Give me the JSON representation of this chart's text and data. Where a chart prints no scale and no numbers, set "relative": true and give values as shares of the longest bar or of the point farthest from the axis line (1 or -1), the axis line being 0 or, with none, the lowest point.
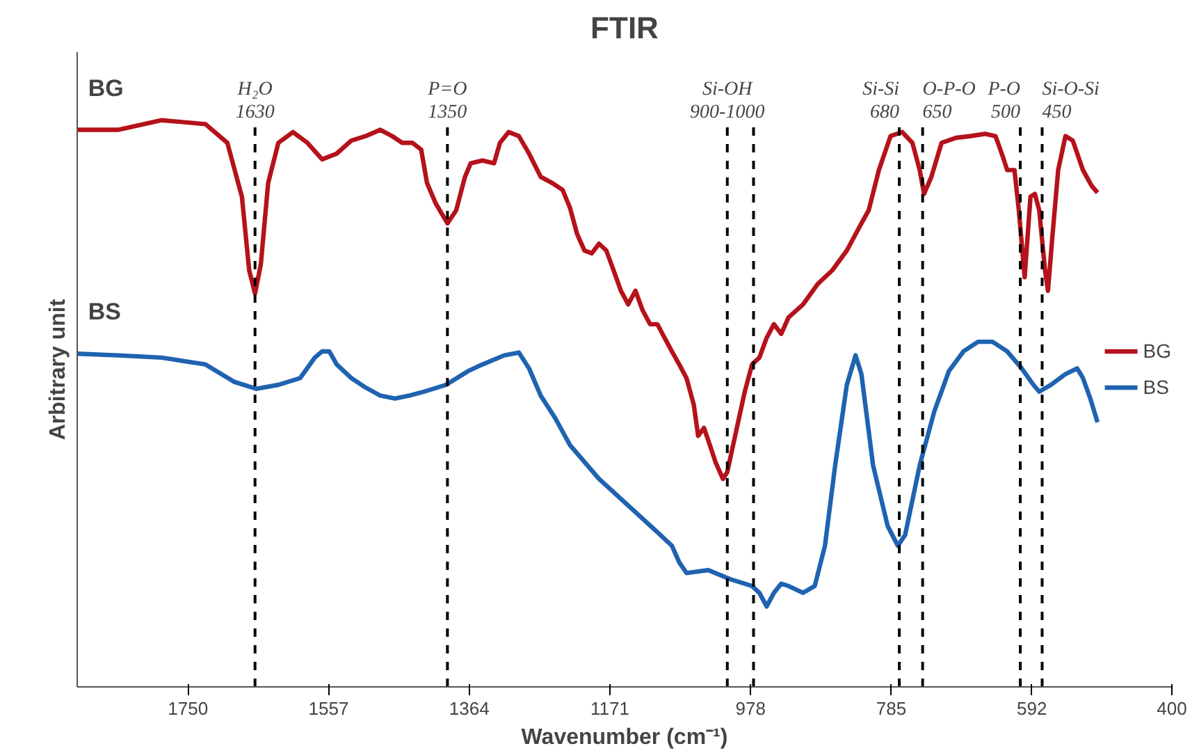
{
  "chart_data": {
    "type": "line",
    "title": "FTIR",
    "xlabel": "Wavenumber (cm⁻¹)",
    "ylabel": "Arbitrary unit",
    "relative": true,
    "grid": false,
    "legend": "right",
    "marker": "none",
    "line_style": "solid",
    "xlim": [
      1902,
      400
    ],
    "xticks": [
      1750,
      1557,
      1364,
      1171,
      978,
      785,
      592,
      400
    ],
    "annotations": [
      "BG",
      "BS"
    ],
    "ref_lines": [
      {
        "axis": "x",
        "value": 1658,
        "label": "H₂O\n1630",
        "color": "#000000",
        "line_style": "dashed"
      },
      {
        "axis": "x",
        "value": 1394,
        "label": "P=O\n1350",
        "color": "#000000",
        "line_style": "dashed"
      },
      {
        "axis": "x",
        "value": 1010,
        "label": "Si-OH\n900-1000",
        "color": "#000000",
        "line_style": "dashed"
      },
      {
        "axis": "x",
        "value": 974,
        "color": "#000000",
        "line_style": "dashed"
      },
      {
        "axis": "x",
        "value": 774,
        "label": "Si-Si\n680",
        "color": "#000000",
        "line_style": "dashed"
      },
      {
        "axis": "x",
        "value": 742,
        "label": "O-P-O\n650",
        "color": "#000000",
        "line_style": "dashed"
      },
      {
        "axis": "x",
        "value": 608,
        "label": "P-O\n500",
        "color": "#000000",
        "line_style": "dashed"
      },
      {
        "axis": "x",
        "value": 578,
        "label": "Si-O-Si\n450",
        "color": "#000000",
        "line_style": "dashed"
      }
    ],
    "series": [
      {
        "name": "BG",
        "color": "#b5121b",
        "x": [
          1902,
          1846,
          1786,
          1726,
          1696,
          1676,
          1666,
          1658,
          1650,
          1640,
          1626,
          1606,
          1586,
          1566,
          1546,
          1526,
          1506,
          1486,
          1470,
          1456,
          1442,
          1430,
          1422,
          1410,
          1394,
          1382,
          1370,
          1362,
          1346,
          1330,
          1322,
          1310,
          1296,
          1282,
          1266,
          1250,
          1236,
          1226,
          1216,
          1206,
          1196,
          1186,
          1176,
          1166,
          1156,
          1146,
          1136,
          1126,
          1116,
          1106,
          1096,
          1086,
          1076,
          1066,
          1056,
          1050,
          1042,
          1034,
          1026,
          1016,
          1010,
          1002,
          994,
          986,
          976,
          966,
          956,
          946,
          936,
          926,
          906,
          886,
          866,
          846,
          826,
          816,
          802,
          786,
          770,
          756,
          746,
          740,
          730,
          716,
          696,
          676,
          656,
          642,
          632,
          626,
          616,
          610,
          602,
          594,
          588,
          582,
          574,
          570,
          564,
          556,
          546,
          536,
          522,
          510,
          502
        ],
        "values": [
          0.983,
          0.983,
          1.0,
          0.993,
          0.96,
          0.865,
          0.735,
          0.694,
          0.746,
          0.889,
          0.96,
          0.979,
          0.96,
          0.931,
          0.941,
          0.964,
          0.972,
          0.983,
          0.972,
          0.96,
          0.96,
          0.948,
          0.889,
          0.853,
          0.818,
          0.841,
          0.9,
          0.924,
          0.929,
          0.924,
          0.96,
          0.979,
          0.972,
          0.941,
          0.9,
          0.889,
          0.877,
          0.846,
          0.799,
          0.77,
          0.765,
          0.782,
          0.77,
          0.735,
          0.699,
          0.675,
          0.699,
          0.664,
          0.64,
          0.64,
          0.616,
          0.592,
          0.569,
          0.545,
          0.498,
          0.443,
          0.457,
          0.427,
          0.396,
          0.367,
          0.379,
          0.427,
          0.474,
          0.521,
          0.569,
          0.581,
          0.616,
          0.64,
          0.623,
          0.652,
          0.675,
          0.711,
          0.735,
          0.77,
          0.818,
          0.841,
          0.912,
          0.972,
          0.979,
          0.96,
          0.912,
          0.87,
          0.9,
          0.96,
          0.969,
          0.972,
          0.976,
          0.972,
          0.936,
          0.912,
          0.912,
          0.841,
          0.723,
          0.865,
          0.87,
          0.841,
          0.735,
          0.699,
          0.794,
          0.912,
          0.972,
          0.964,
          0.912,
          0.884,
          0.872
        ]
      },
      {
        "name": "BS",
        "color": "#1f63b0",
        "x": [
          1902,
          1846,
          1786,
          1726,
          1686,
          1656,
          1626,
          1596,
          1576,
          1566,
          1556,
          1546,
          1526,
          1506,
          1486,
          1466,
          1446,
          1426,
          1396,
          1366,
          1346,
          1316,
          1296,
          1282,
          1266,
          1246,
          1226,
          1186,
          1146,
          1106,
          1086,
          1076,
          1066,
          1036,
          1006,
          976,
          966,
          956,
          946,
          936,
          926,
          906,
          890,
          876,
          862,
          846,
          834,
          826,
          810,
          790,
          776,
          766,
          746,
          726,
          706,
          686,
          666,
          646,
          626,
          606,
          590,
          582,
          566,
          546,
          530,
          522,
          512,
          502
        ],
        "values": [
          0.588,
          0.585,
          0.581,
          0.569,
          0.538,
          0.526,
          0.533,
          0.545,
          0.581,
          0.592,
          0.592,
          0.569,
          0.545,
          0.528,
          0.514,
          0.509,
          0.514,
          0.521,
          0.533,
          0.557,
          0.569,
          0.585,
          0.59,
          0.562,
          0.514,
          0.474,
          0.427,
          0.367,
          0.32,
          0.273,
          0.249,
          0.22,
          0.201,
          0.206,
          0.19,
          0.178,
          0.166,
          0.142,
          0.166,
          0.182,
          0.178,
          0.166,
          0.178,
          0.249,
          0.391,
          0.533,
          0.585,
          0.552,
          0.391,
          0.284,
          0.249,
          0.268,
          0.391,
          0.486,
          0.557,
          0.592,
          0.609,
          0.609,
          0.592,
          0.562,
          0.533,
          0.521,
          0.533,
          0.552,
          0.562,
          0.545,
          0.509,
          0.467
        ]
      }
    ]
  }
}
